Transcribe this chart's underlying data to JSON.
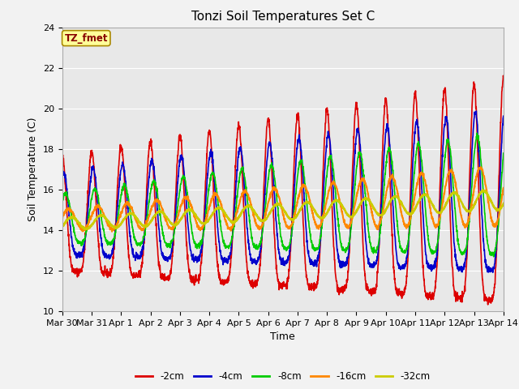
{
  "title": "Tonzi Soil Temperatures Set C",
  "xlabel": "Time",
  "ylabel": "Soil Temperature (C)",
  "ylim": [
    10,
    24
  ],
  "xlim_days": 15,
  "series_labels": [
    "-2cm",
    "-4cm",
    "-8cm",
    "-16cm",
    "-32cm"
  ],
  "series_colors": [
    "#dd0000",
    "#0000cc",
    "#00cc00",
    "#ff8800",
    "#cccc00"
  ],
  "xtick_labels": [
    "Mar 30",
    "Mar 31",
    "Apr 1",
    "Apr 2",
    "Apr 3",
    "Apr 4",
    "Apr 5",
    "Apr 6",
    "Apr 7",
    "Apr 8",
    "Apr 9",
    "Apr 10",
    "Apr 11",
    "Apr 12",
    "Apr 13",
    "Apr 14"
  ],
  "yticks": [
    10,
    12,
    14,
    16,
    18,
    20,
    22,
    24
  ],
  "annotation_text": "TZ_fmet",
  "annotation_fg": "#880000",
  "annotation_bg": "#ffff99",
  "annotation_border": "#aa8800",
  "plot_bg": "#e8e8e8",
  "fig_bg": "#f2f2f2",
  "grid_color": "#ffffff"
}
